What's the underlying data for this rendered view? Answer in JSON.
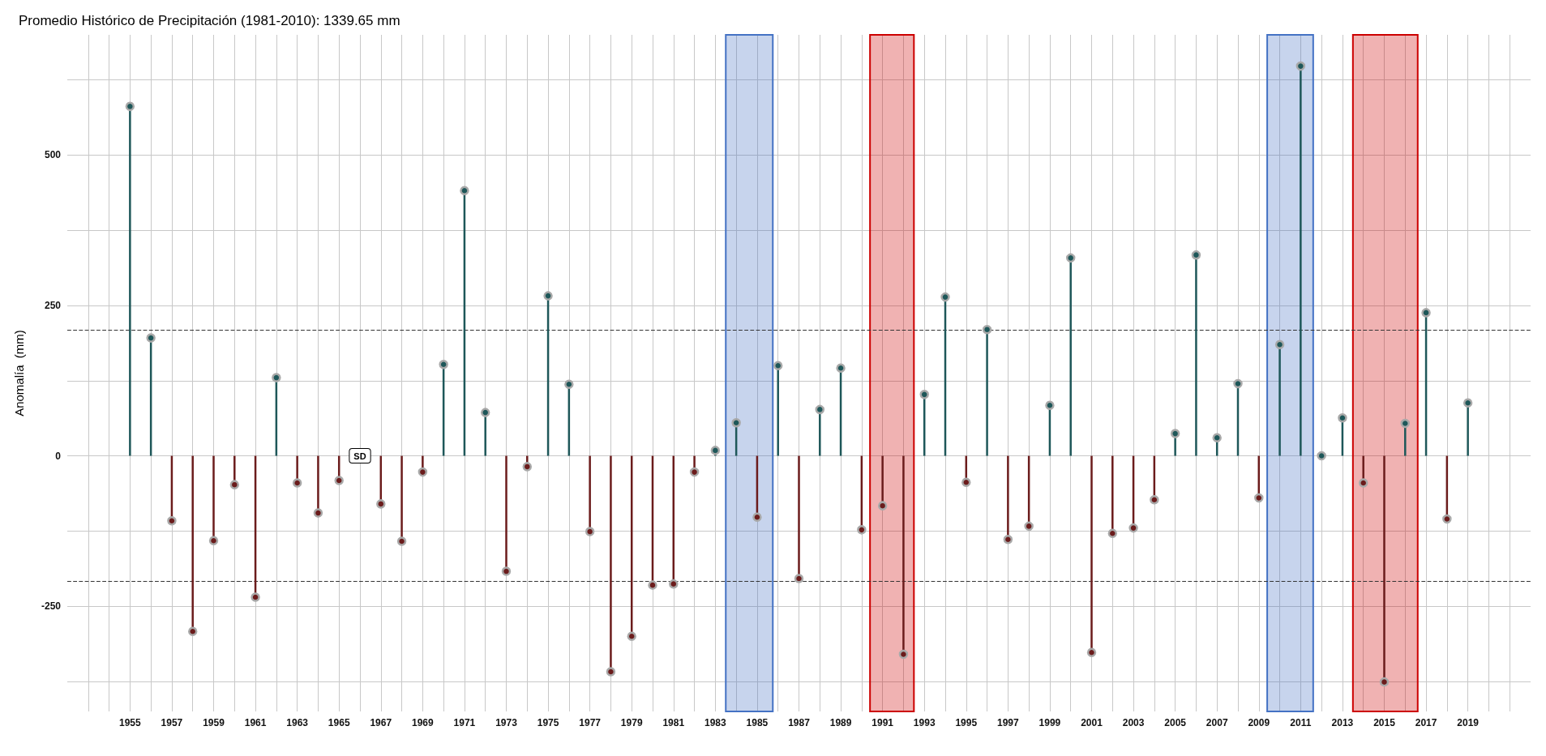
{
  "chart_data": {
    "type": "lollipop",
    "title": "Promedio Histórico de Precipitación (1981-2010): 1339.65 mm",
    "ylabel": "Anomalía  (mm)",
    "x": [
      1955,
      1956,
      1957,
      1958,
      1959,
      1960,
      1961,
      1962,
      1963,
      1964,
      1965,
      1966,
      1967,
      1968,
      1969,
      1970,
      1971,
      1972,
      1973,
      1974,
      1975,
      1976,
      1977,
      1978,
      1979,
      1980,
      1981,
      1982,
      1983,
      1984,
      1985,
      1986,
      1987,
      1988,
      1989,
      1990,
      1991,
      1992,
      1993,
      1994,
      1995,
      1996,
      1997,
      1998,
      1999,
      2000,
      2001,
      2002,
      2003,
      2004,
      2005,
      2006,
      2007,
      2008,
      2009,
      2010,
      2011,
      2012,
      2013,
      2014,
      2015,
      2016,
      2017,
      2018,
      2019
    ],
    "values": [
      581,
      196,
      -108,
      -292,
      -141,
      -48,
      -235,
      130,
      -45,
      -95,
      -41,
      null,
      -80,
      -142,
      -27,
      152,
      441,
      72,
      -192,
      -18,
      266,
      119,
      -126,
      -359,
      -300,
      -215,
      -213,
      -27,
      9,
      55,
      -102,
      150,
      -204,
      77,
      146,
      -123,
      -83,
      -330,
      102,
      264,
      -44,
      210,
      -139,
      -117,
      84,
      329,
      -327,
      -129,
      -120,
      -73,
      37,
      334,
      30,
      120,
      -70,
      185,
      648,
      0,
      63,
      -45,
      -376,
      54,
      238,
      -105,
      88
    ],
    "colors": [
      "#1e5759",
      "#1e5759",
      "#6b1c1c",
      "#6b1c1c",
      "#6b1c1c",
      "#6b1c1c",
      "#6b1c1c",
      "#1e5759",
      "#6b1c1c",
      "#6b1c1c",
      "#6b1c1c",
      null,
      "#6b1c1c",
      "#6b1c1c",
      "#6b1c1c",
      "#1e5759",
      "#1e5759",
      "#1e5759",
      "#6b1c1c",
      "#6b1c1c",
      "#1e5759",
      "#1e5759",
      "#6b1c1c",
      "#6b1c1c",
      "#6b1c1c",
      "#6b1c1c",
      "#6b1c1c",
      "#6b1c1c",
      "#1e5759",
      "#1e5759",
      "#6b1c1c",
      "#1e5759",
      "#6b1c1c",
      "#1e5759",
      "#1e5759",
      "#6b1c1c",
      "#6b1c1c",
      "#6b1c1c",
      "#1e5759",
      "#1e5759",
      "#6b1c1c",
      "#1e5759",
      "#6b1c1c",
      "#6b1c1c",
      "#1e5759",
      "#1e5759",
      "#6b1c1c",
      "#6b1c1c",
      "#6b1c1c",
      "#6b1c1c",
      "#1e5759",
      "#1e5759",
      "#1e5759",
      "#1e5759",
      "#6b1c1c",
      "#1e5759",
      "#1e5759",
      "#1e5759",
      "#1e5759",
      "#6b1c1c",
      "#6b1c1c",
      "#1e5759",
      "#1e5759",
      "#6b1c1c",
      "#1e5759"
    ],
    "marker": "circle",
    "xlim": [
      1952,
      2022
    ],
    "xticks": [
      {
        "value": 1953,
        "label": null
      },
      {
        "value": 1954,
        "label": null
      },
      1955,
      {
        "value": 1956,
        "label": null
      },
      1957,
      {
        "value": 1958,
        "label": null
      },
      1959,
      {
        "value": 1960,
        "label": null
      },
      1961,
      {
        "value": 1962,
        "label": null
      },
      1963,
      {
        "value": 1964,
        "label": null
      },
      1965,
      {
        "value": 1966,
        "label": null
      },
      1967,
      {
        "value": 1968,
        "label": null
      },
      1969,
      {
        "value": 1970,
        "label": null
      },
      1971,
      {
        "value": 1972,
        "label": null
      },
      1973,
      {
        "value": 1974,
        "label": null
      },
      1975,
      {
        "value": 1976,
        "label": null
      },
      1977,
      {
        "value": 1978,
        "label": null
      },
      1979,
      {
        "value": 1980,
        "label": null
      },
      1981,
      {
        "value": 1982,
        "label": null
      },
      1983,
      {
        "value": 1984,
        "label": null
      },
      1985,
      {
        "value": 1986,
        "label": null
      },
      1987,
      {
        "value": 1988,
        "label": null
      },
      1989,
      {
        "value": 1990,
        "label": null
      },
      1991,
      {
        "value": 1992,
        "label": null
      },
      1993,
      {
        "value": 1994,
        "label": null
      },
      1995,
      {
        "value": 1996,
        "label": null
      },
      1997,
      {
        "value": 1998,
        "label": null
      },
      1999,
      {
        "value": 2000,
        "label": null
      },
      2001,
      {
        "value": 2002,
        "label": null
      },
      2003,
      {
        "value": 2004,
        "label": null
      },
      2005,
      {
        "value": 2006,
        "label": null
      },
      2007,
      {
        "value": 2008,
        "label": null
      },
      2009,
      {
        "value": 2010,
        "label": null
      },
      2011,
      {
        "value": 2012,
        "label": null
      },
      2013,
      {
        "value": 2014,
        "label": null
      },
      2015,
      {
        "value": 2016,
        "label": null
      },
      2017,
      {
        "value": 2018,
        "label": null
      },
      2019,
      {
        "value": 2020,
        "label": null
      },
      {
        "value": 2021,
        "label": null
      }
    ],
    "ylim": [
      -425,
      700
    ],
    "yticks": [
      {
        "value": -375,
        "label": null
      },
      -250,
      {
        "value": -125,
        "label": null
      },
      0,
      {
        "value": 125,
        "label": null
      },
      250,
      {
        "value": 375,
        "label": null
      },
      500,
      {
        "value": 625,
        "label": null
      }
    ],
    "grid": true,
    "ref_lines": [
      {
        "axis": "y",
        "value": 209,
        "color": "#333333",
        "line_style": "dashed"
      },
      {
        "axis": "y",
        "value": -209,
        "color": "#333333",
        "line_style": "dashed"
      }
    ],
    "bands": [
      {
        "axis": "x",
        "from": 1983.5,
        "to": 1985.75,
        "color": "#4472c4"
      },
      {
        "axis": "x",
        "from": 1990.4,
        "to": 1992.5,
        "color": "#cc0000"
      },
      {
        "axis": "x",
        "from": 2009.4,
        "to": 2011.6,
        "color": "#4472c4"
      },
      {
        "axis": "x",
        "from": 2013.5,
        "to": 2016.6,
        "color": "#cc0000"
      }
    ],
    "annotations": [
      {
        "text": "SD",
        "x": 1966,
        "y": 0
      }
    ]
  }
}
